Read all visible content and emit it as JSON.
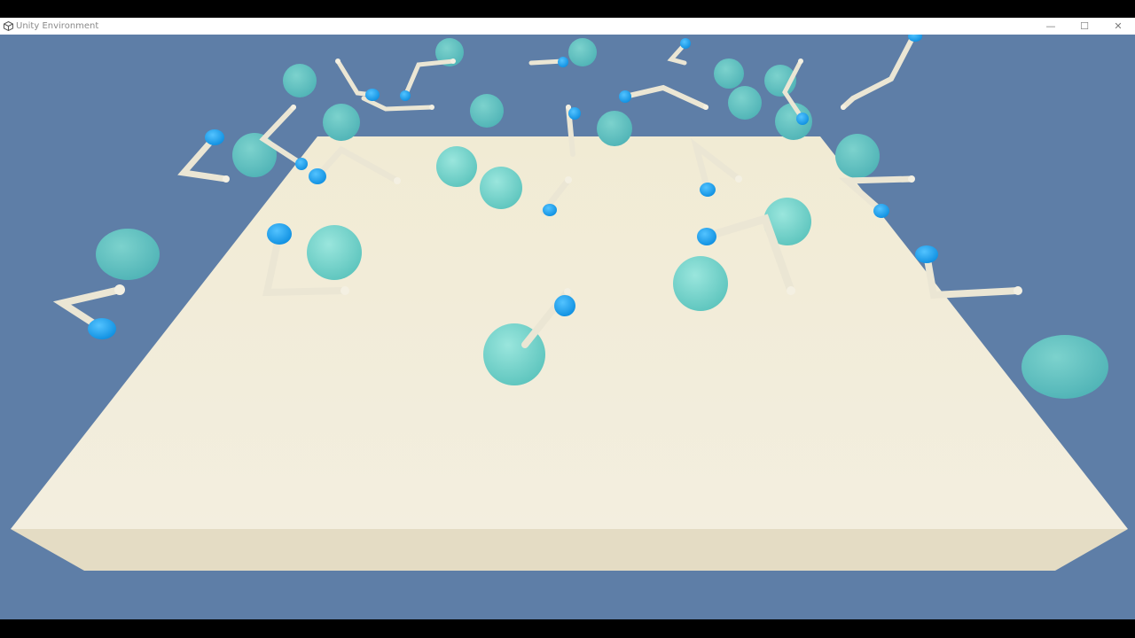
{
  "window": {
    "title": "Unity Environment",
    "icon": "unity-logo-icon",
    "controls": {
      "minimize": "—",
      "maximize": "☐",
      "close": "✕"
    }
  },
  "scene": {
    "sky_color": "#5e7ea7",
    "floor_color": "#f2ecd8",
    "floor_side_color": "#e6dec6",
    "target_color": "#7fd8cf",
    "hand_color": "#1fa3f0",
    "arm_color": "#ece7d6"
  }
}
